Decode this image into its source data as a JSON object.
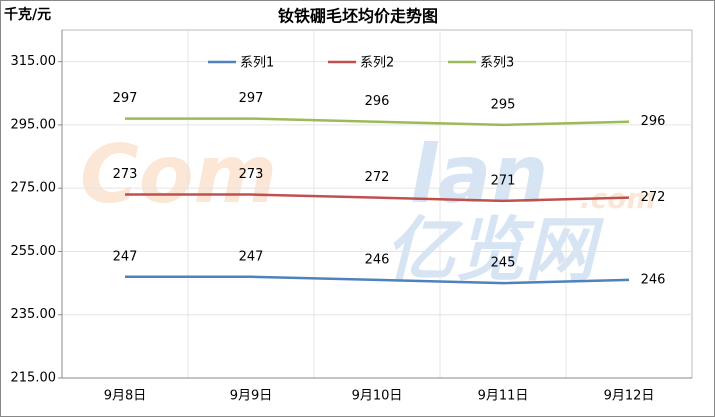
{
  "chart_data": {
    "type": "line",
    "title": "钕铁硼毛坯均价走势图",
    "y_label": "千克/元",
    "categories": [
      "9月8日",
      "9月9日",
      "9月10日",
      "9月11日",
      "9月12日"
    ],
    "series": [
      {
        "name": "系列1",
        "color": "#4f81bd",
        "values": [
          247,
          247,
          246,
          245,
          246
        ]
      },
      {
        "name": "系列2",
        "color": "#c0504d",
        "values": [
          273,
          273,
          272,
          271,
          272
        ]
      },
      {
        "name": "系列3",
        "color": "#9bbb59",
        "values": [
          297,
          297,
          296,
          295,
          296
        ]
      }
    ],
    "ylim": [
      215,
      325
    ],
    "yticks": [
      {
        "value": 215,
        "label": "215.00"
      },
      {
        "value": 235,
        "label": "235.00"
      },
      {
        "value": 255,
        "label": "255.00"
      },
      {
        "value": 275,
        "label": "275.00"
      },
      {
        "value": 295,
        "label": "295.00"
      },
      {
        "value": 315,
        "label": "315.00"
      }
    ],
    "grid": true,
    "legend": "top",
    "watermark": [
      "Com",
      "lan",
      ".com",
      "亿览网"
    ]
  }
}
